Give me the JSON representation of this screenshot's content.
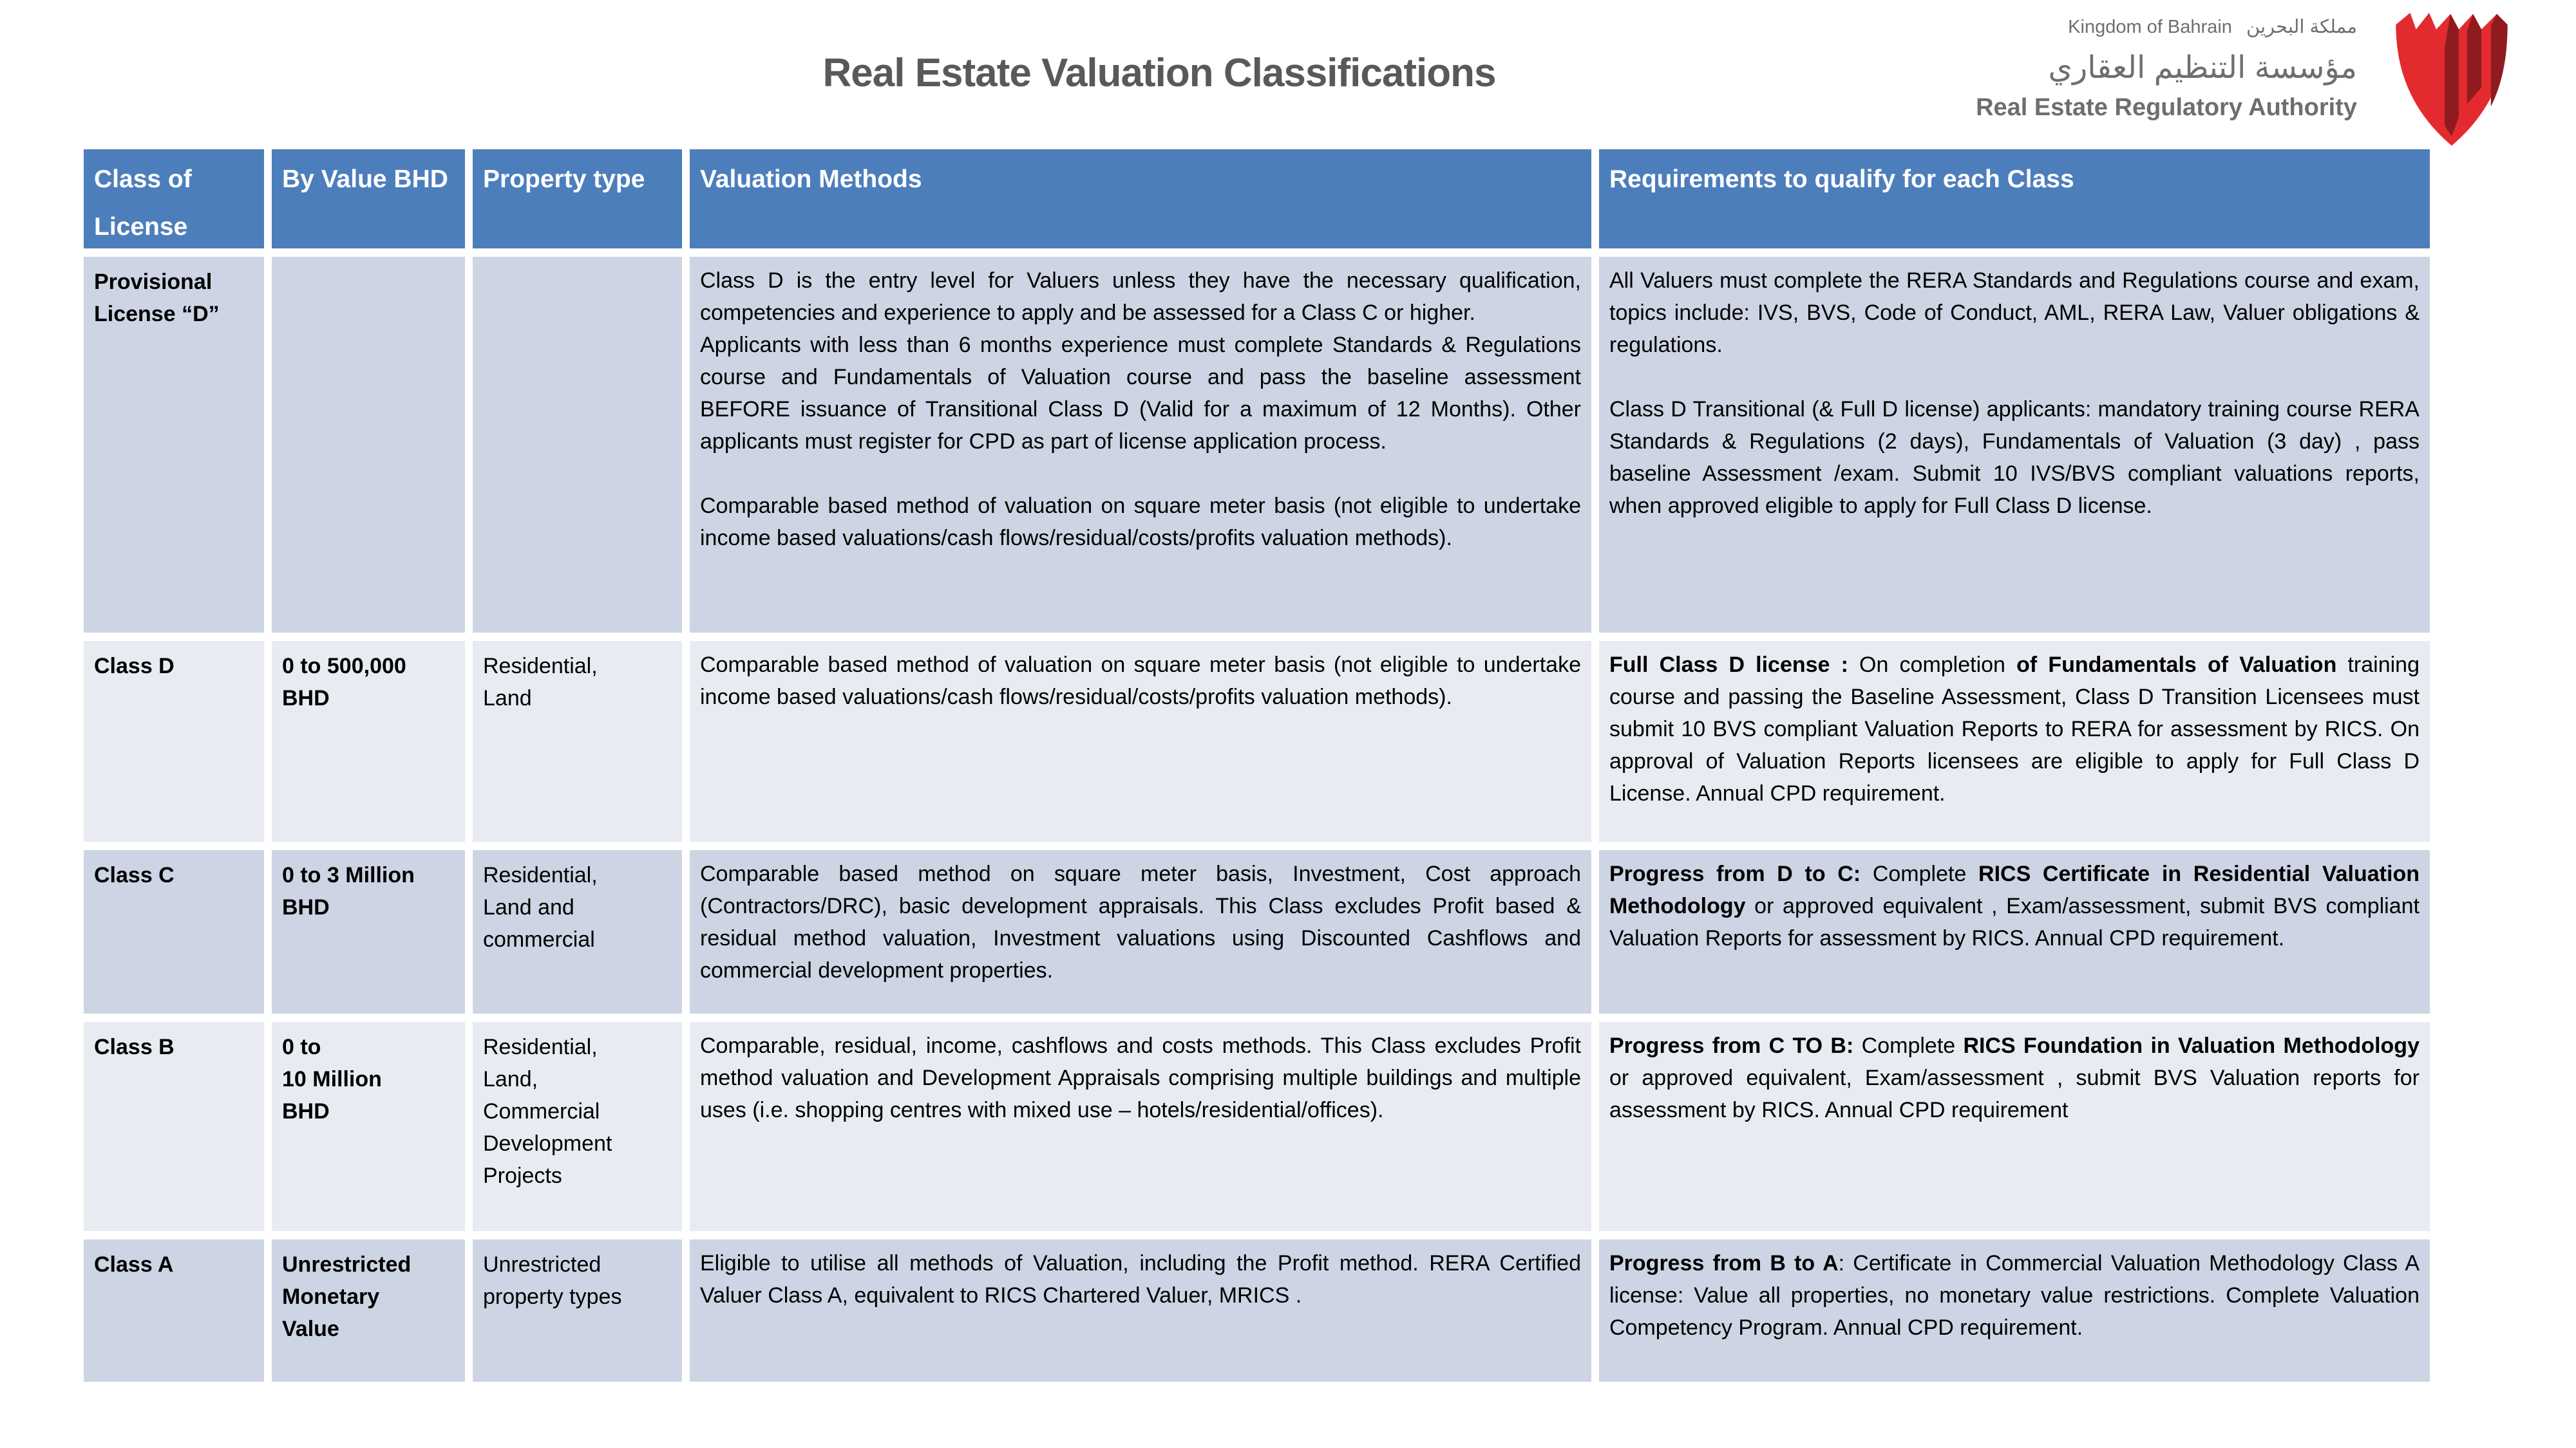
{
  "colors": {
    "header_bg": "#4d7ebc",
    "row_odd": "#cdd4e3",
    "row_even": "#e8ebf2",
    "logo_red": "#e32b2f",
    "logo_dark": "#8f1b20",
    "title_color": "#58595b",
    "authority_color": "#6d6e71"
  },
  "header": {
    "title": "Real Estate Valuation Classifications",
    "kingdom_en": "Kingdom of Bahrain",
    "kingdom_ar": "مملكة البحرين",
    "authority_ar": "مؤسسة التنظيم العقاري",
    "authority_en": "Real Estate Regulatory Authority"
  },
  "table": {
    "columns": [
      "Class of License",
      "By Value BHD",
      "Property type",
      "Valuation Methods",
      "Requirements to qualify for each Class"
    ],
    "rows": [
      {
        "class_label": "Provisional\nLicense “D”",
        "by_value": "",
        "property_type": "",
        "valuation_methods": [
          [
            {
              "t": "Class D is the entry level for Valuers unless they have the necessary qualification, competencies and experience to apply and be assessed for a Class C or higher."
            }
          ],
          [
            {
              "t": " Applicants with less than 6 months experience must complete Standards & Regulations course and Fundamentals of Valuation course and pass the baseline assessment BEFORE  issuance of Transitional Class D (Valid for a maximum of 12 Months). Other applicants must register for CPD as part of license application process."
            }
          ],
          [],
          [
            {
              "t": "Comparable based method of valuation on square meter basis (not eligible to undertake income based valuations/cash flows/residual/costs/profits valuation methods)."
            }
          ]
        ],
        "requirements": [
          [
            {
              "t": "All Valuers must complete the RERA Standards and Regulations course and exam,  topics  include: IVS, BVS, Code of Conduct, AML, RERA Law, Valuer obligations & regulations."
            }
          ],
          [],
          [
            {
              "t": "Class D Transitional  (& Full D license) applicants: mandatory training course RERA Standards & Regulations (2 days), Fundamentals  of Valuation  (3 day) , pass baseline Assessment /exam. Submit 10 IVS/BVS compliant valuations reports, when approved eligible to apply for Full Class D license."
            }
          ]
        ]
      },
      {
        "class_label": "Class D",
        "by_value": "0 to 500,000\nBHD",
        "property_type": "Residential,\nLand",
        "valuation_methods": [
          [
            {
              "t": "Comparable based method of valuation on square meter basis (not eligible to undertake income based valuations/cash flows/residual/costs/profits valuation methods)."
            }
          ]
        ],
        "requirements": [
          [
            {
              "t": "Full Class D license : ",
              "b": true
            },
            {
              "t": "On completion "
            },
            {
              "t": "of Fundamentals of Valuation",
              "b": true
            },
            {
              "t": " training course  and passing the Baseline Assessment, Class D Transition Licensees must  submit  10 BVS compliant Valuation Reports to RERA for assessment by RICS. On approval of Valuation Reports  licensees are eligible to apply for Full  Class D  License. Annual CPD requirement."
            }
          ]
        ]
      },
      {
        "class_label": "Class C",
        "by_value": "0 to 3 Million\nBHD",
        "property_type": "Residential,\nLand and\ncommercial",
        "valuation_methods": [
          [
            {
              "t": "Comparable based method  on square meter basis, Investment, Cost approach (Contractors/DRC), basic development appraisals. This Class excludes Profit based & residual method valuation, Investment valuations using Discounted Cashflows and commercial development properties."
            }
          ]
        ],
        "requirements": [
          [
            {
              "t": "Progress from D to C: ",
              "b": true
            },
            {
              "t": "Complete "
            },
            {
              "t": "RICS Certificate in Residential Valuation Methodology",
              "b": true
            },
            {
              "t": " or approved equivalent , Exam/assessment, submit BVS compliant Valuation Reports for assessment by RICS. Annual CPD requirement."
            }
          ]
        ]
      },
      {
        "class_label": "Class B",
        "by_value": "0 to\n10 Million\nBHD",
        "property_type": "Residential,\nLand,\nCommercial\nDevelopment\nProjects",
        "valuation_methods": [
          [
            {
              "t": "Comparable, residual, income, cashflows and costs methods. This Class excludes Profit method valuation and Development Appraisals comprising multiple buildings and multiple uses (i.e. shopping centres with mixed use – hotels/residential/offices)."
            }
          ]
        ],
        "requirements": [
          [
            {
              "t": "Progress from C TO B: ",
              "b": true
            },
            {
              "t": "Complete "
            },
            {
              "t": "RICS Foundation in Valuation Methodology",
              "b": true
            },
            {
              "t": " or approved equivalent, Exam/assessment , submit BVS Valuation reports for assessment by RICS. Annual CPD requirement"
            }
          ]
        ]
      },
      {
        "class_label": "Class A",
        "by_value": "Unrestricted\nMonetary\nValue",
        "property_type": "Unrestricted\nproperty types",
        "valuation_methods": [
          [
            {
              "t": "Eligible to utilise all methods of Valuation, including the Profit method. RERA Certified Valuer Class A, equivalent to RICS Chartered Valuer, MRICS ."
            }
          ]
        ],
        "requirements": [
          [
            {
              "t": "Progress from B to A",
              "b": true
            },
            {
              "t": ": Certificate in Commercial Valuation Methodology Class A license: Value all properties, no monetary value restrictions.  Complete  Valuation Competency Program. Annual CPD requirement."
            }
          ]
        ]
      }
    ]
  }
}
